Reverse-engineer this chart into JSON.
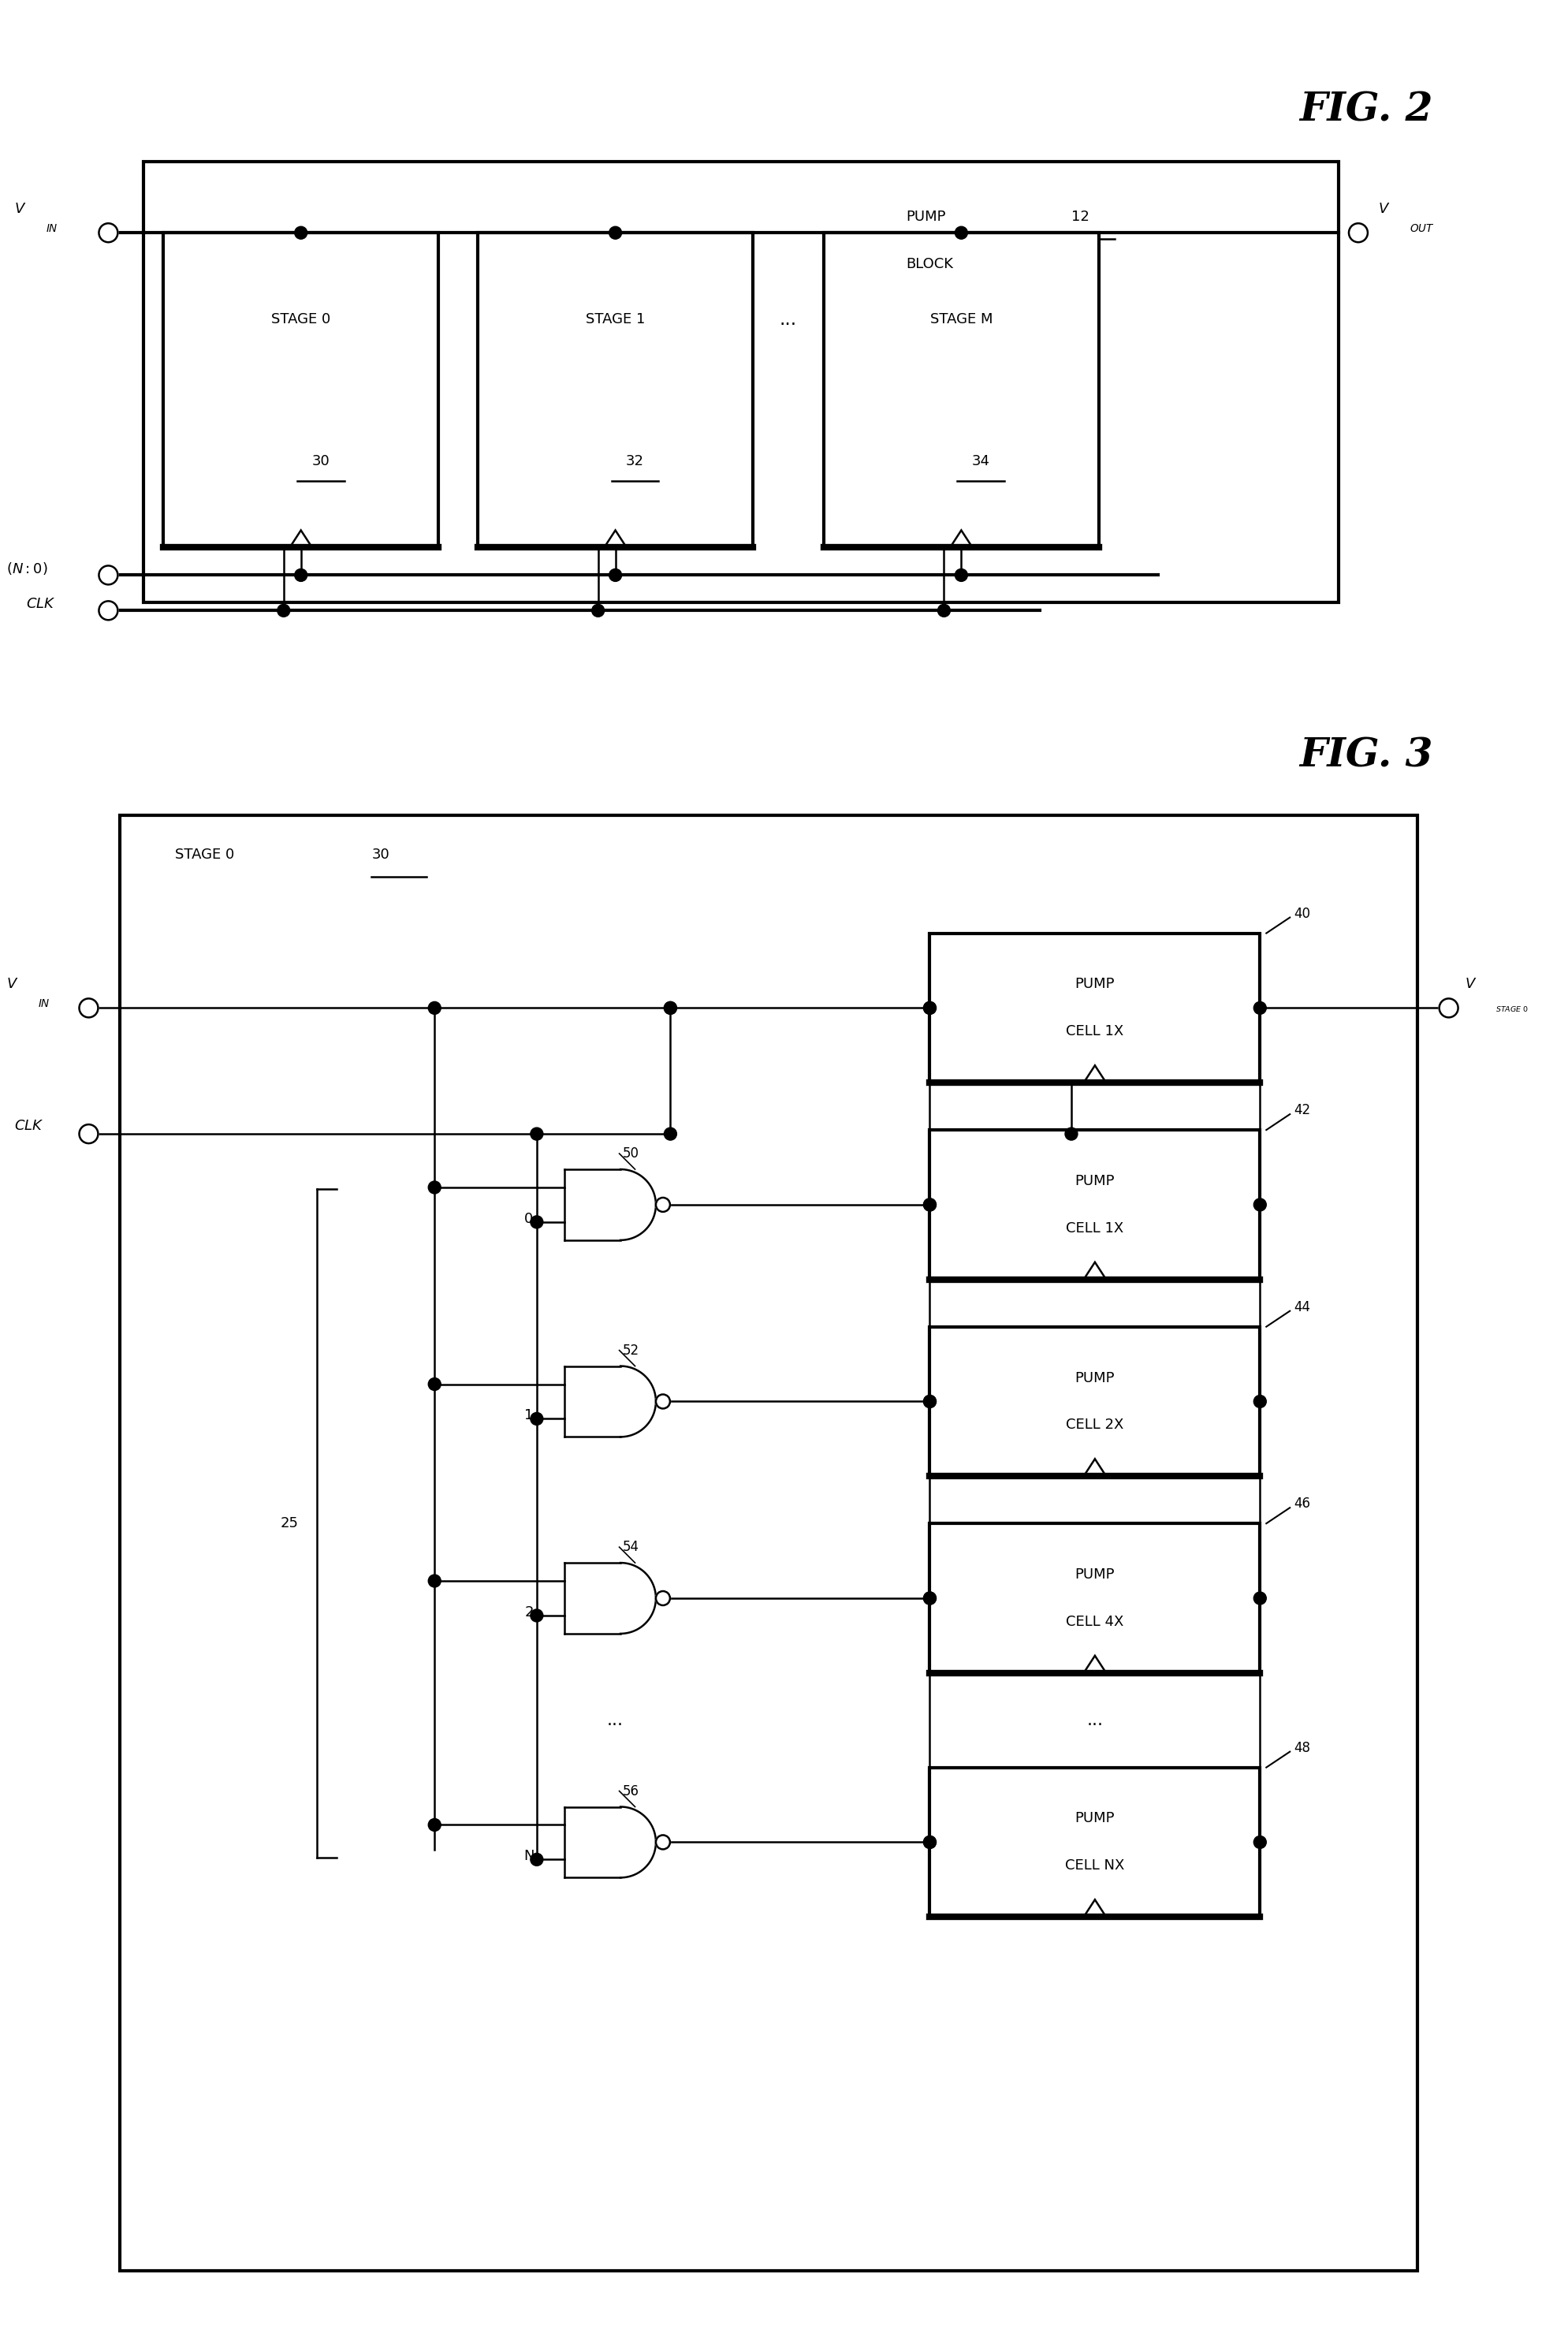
{
  "fig_width": 19.89,
  "fig_height": 29.83,
  "bg_color": "#ffffff",
  "fig2_title": "FIG. 2",
  "fig3_title": "FIG. 3",
  "stages_fig2": [
    {
      "label": "STAGE 0",
      "ref": "30"
    },
    {
      "label": "STAGE 1",
      "ref": "32"
    },
    {
      "label": "STAGE M",
      "ref": "34"
    }
  ],
  "fig3_stage_ref": "30",
  "pump_cells": [
    {
      "label": "PUMP\nCELL 1X",
      "ref": "40"
    },
    {
      "label": "PUMP\nCELL 1X",
      "ref": "42"
    },
    {
      "label": "PUMP\nCELL 2X",
      "ref": "44"
    },
    {
      "label": "PUMP\nCELL 4X",
      "ref": "46"
    },
    {
      "label": "PUMP\nCELL NX",
      "ref": "48"
    }
  ],
  "and_gates": [
    {
      "label": "0",
      "ref": "50"
    },
    {
      "label": "1",
      "ref": "52"
    },
    {
      "label": "2",
      "ref": "54"
    },
    {
      "label": "N",
      "ref": "56"
    }
  ],
  "fig3_bus_label": "25"
}
